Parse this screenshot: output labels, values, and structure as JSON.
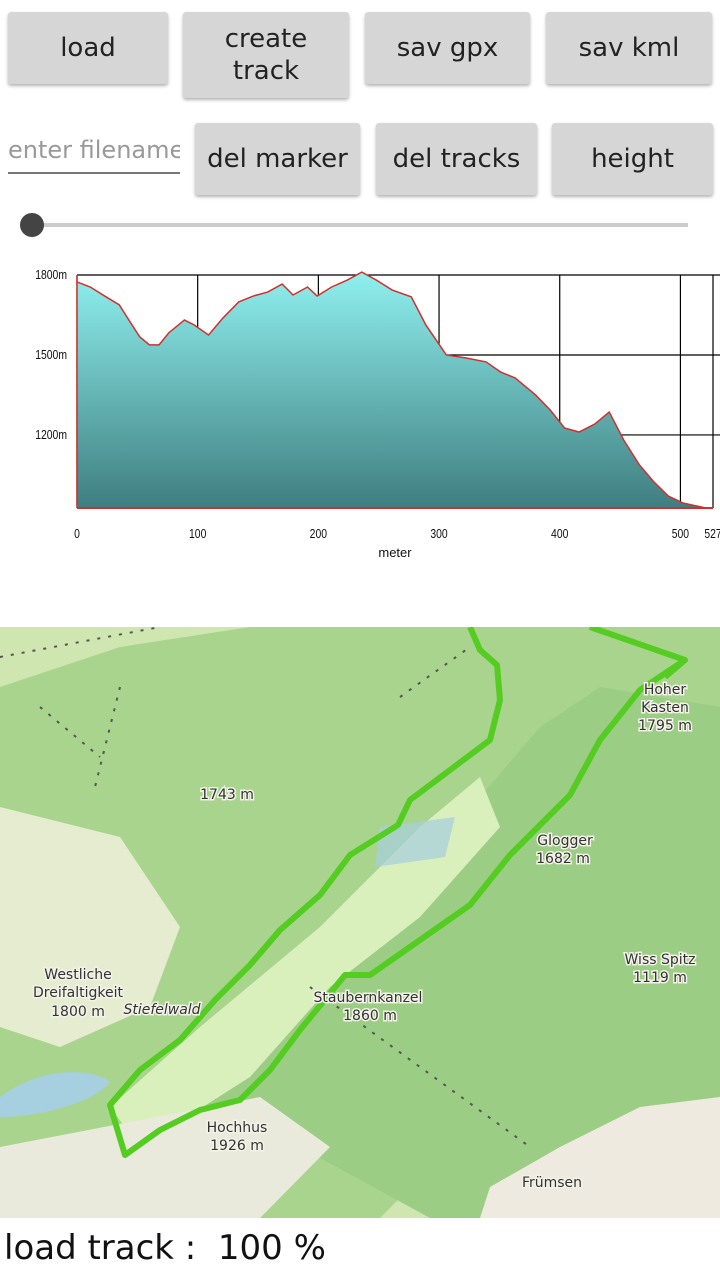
{
  "buttons": [
    "load",
    "create track",
    "sav gpx",
    "sav kml",
    "del marker",
    "del tracks",
    "height"
  ],
  "filename_placeholder": "enter filename",
  "chart_data": {
    "type": "area",
    "x": [
      0,
      11,
      23,
      35,
      43,
      52,
      60,
      68,
      76,
      89,
      97,
      109,
      121,
      134,
      146,
      158,
      170,
      179,
      191,
      199,
      211,
      224,
      236,
      248,
      261,
      277,
      289,
      306,
      322,
      339,
      351,
      363,
      380,
      392,
      404,
      416,
      429,
      441,
      453,
      466,
      478,
      490,
      502,
      521,
      527
    ],
    "values": [
      1774,
      1755,
      1721,
      1688,
      1631,
      1568,
      1538,
      1538,
      1583,
      1631,
      1613,
      1575,
      1639,
      1699,
      1721,
      1736,
      1766,
      1725,
      1755,
      1721,
      1755,
      1781,
      1811,
      1781,
      1744,
      1718,
      1613,
      1500,
      1489,
      1474,
      1436,
      1414,
      1350,
      1294,
      1226,
      1211,
      1241,
      1286,
      1181,
      1088,
      1024,
      971,
      945,
      926,
      926
    ],
    "xlim": [
      0,
      527
    ],
    "ylim": [
      926,
      1800
    ],
    "xticks": [
      0,
      100,
      200,
      300,
      400,
      500,
      527
    ],
    "yticks": [
      {
        "value": 1800,
        "label": "1800m"
      },
      {
        "value": 1500,
        "label": "1500m"
      },
      {
        "value": 1200,
        "label": "1200m"
      }
    ],
    "xlabel": "meter",
    "color": "#d03030",
    "grid": true
  },
  "map": {
    "labels": [
      "1743 m",
      "Hoher",
      "Kasten",
      "1795 m",
      "Glogger",
      "1682 m",
      "Wiss Spitz",
      "1119 m",
      "Westliche",
      "Dreifaltigkeit",
      "1800 m",
      "Stiefelwald",
      "Staubernkanzel",
      "1860 m",
      "Hochhus",
      "1926 m",
      "Frümsen"
    ]
  },
  "status": "load track :  100 %"
}
